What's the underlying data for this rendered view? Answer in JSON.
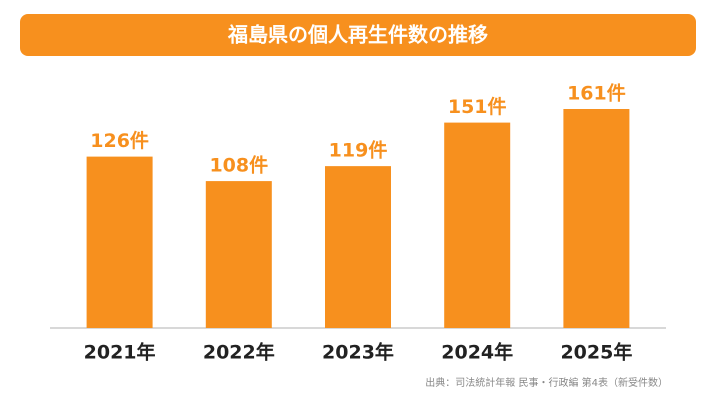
{
  "chart_data": {
    "type": "bar",
    "title": "福島県の個人再生件数の推移",
    "categories": [
      "2021年",
      "2022年",
      "2023年",
      "2024年",
      "2025年"
    ],
    "values": [
      126,
      108,
      119,
      151,
      161
    ],
    "value_labels": [
      "126件",
      "108件",
      "119件",
      "151件",
      "161件"
    ],
    "color": "#f7901e",
    "source": "出典：司法統計年報 民事・行政編 第4表（新受件数）"
  }
}
